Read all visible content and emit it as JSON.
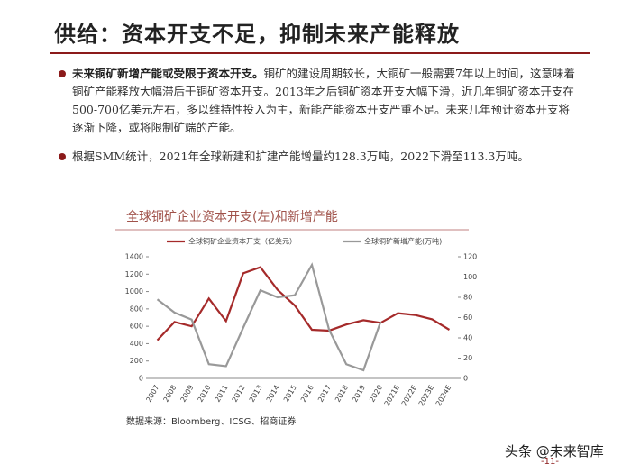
{
  "header": {
    "title": "供给：资本开支不足，抑制未来产能释放"
  },
  "bullets": [
    {
      "bold": "未来铜矿新增产能或受限于资本开支。",
      "text": "铜矿的建设周期较长，大铜矿一般需要7年以上时间，这意味着铜矿产能释放大幅滞后于铜矿资本开支。2013年之后铜矿资本开支大幅下滑，近几年铜矿资本开支在500-700亿美元左右，多以维持性投入为主，新能产能资本开支严重不足。未来几年预计资本开支将逐渐下降，或将限制矿端的产能。"
    },
    {
      "text": "根据SMM统计，2021年全球新建和扩建产能增量约128.3万吨，2022下滑至113.3万吨。"
    }
  ],
  "chart_data": {
    "type": "line",
    "title": "全球铜矿企业资本开支(左)和新增产能",
    "categories": [
      "2007",
      "2008",
      "2009",
      "2010",
      "2011",
      "2012",
      "2013",
      "2014",
      "2015",
      "2016",
      "2017",
      "2018",
      "2019",
      "2020",
      "2021E",
      "2022E",
      "2023E",
      "2024E"
    ],
    "series": [
      {
        "name": "全球铜矿企业资本开支（亿美元）",
        "color": "#a52a2a",
        "axis": "y",
        "values": [
          440,
          650,
          600,
          920,
          660,
          1210,
          1280,
          1020,
          840,
          560,
          550,
          620,
          670,
          640,
          750,
          730,
          680,
          560
        ]
      },
      {
        "name": "全球铜矿新增产能(万吨)",
        "color": "#999999",
        "axis": "y2",
        "values": [
          78,
          65,
          58,
          14,
          12,
          50,
          87,
          80,
          82,
          112,
          48,
          14,
          8,
          56,
          null,
          null,
          null,
          null
        ]
      }
    ],
    "ylim": [
      0,
      1400
    ],
    "yticks": [
      0,
      200,
      400,
      600,
      800,
      1000,
      1200,
      1400
    ],
    "y2lim": [
      0,
      120
    ],
    "y2ticks": [
      0,
      20,
      40,
      60,
      80,
      100,
      120
    ],
    "source": "数据来源：Bloomberg、ICSG、招商证券"
  },
  "footer": {
    "page": "-11-",
    "watermark": "头条 @未来智库"
  }
}
